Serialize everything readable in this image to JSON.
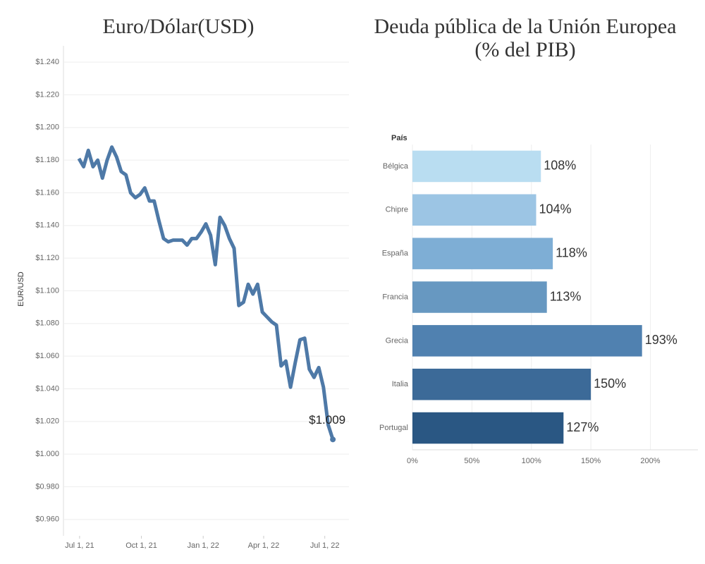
{
  "chart_data": [
    {
      "type": "line",
      "title": "Euro/Dólar(USD)",
      "y_label": "EUR/USD",
      "annotation": "$1.009",
      "color": "#4e79a7",
      "grid": true,
      "x": [
        "2021-06-30",
        "2021-07-07",
        "2021-07-14",
        "2021-07-21",
        "2021-07-28",
        "2021-08-04",
        "2021-08-11",
        "2021-08-18",
        "2021-08-25",
        "2021-09-01",
        "2021-09-08",
        "2021-09-15",
        "2021-09-22",
        "2021-09-29",
        "2021-10-06",
        "2021-10-13",
        "2021-10-20",
        "2021-10-27",
        "2021-11-03",
        "2021-11-10",
        "2021-11-17",
        "2021-11-24",
        "2021-12-01",
        "2021-12-08",
        "2021-12-15",
        "2021-12-22",
        "2021-12-29",
        "2022-01-05",
        "2022-01-12",
        "2022-01-19",
        "2022-01-26",
        "2022-02-02",
        "2022-02-09",
        "2022-02-16",
        "2022-02-23",
        "2022-03-02",
        "2022-03-09",
        "2022-03-16",
        "2022-03-23",
        "2022-03-30",
        "2022-04-06",
        "2022-04-13",
        "2022-04-20",
        "2022-04-27",
        "2022-05-04",
        "2022-05-11",
        "2022-05-18",
        "2022-05-25",
        "2022-06-01",
        "2022-06-08",
        "2022-06-15",
        "2022-06-22",
        "2022-06-29",
        "2022-07-06",
        "2022-07-13"
      ],
      "values": [
        1.181,
        1.176,
        1.186,
        1.176,
        1.18,
        1.169,
        1.18,
        1.188,
        1.182,
        1.173,
        1.171,
        1.16,
        1.157,
        1.159,
        1.163,
        1.155,
        1.155,
        1.143,
        1.132,
        1.13,
        1.131,
        1.131,
        1.131,
        1.128,
        1.132,
        1.132,
        1.136,
        1.141,
        1.134,
        1.116,
        1.145,
        1.14,
        1.132,
        1.126,
        1.091,
        1.093,
        1.104,
        1.098,
        1.104,
        1.087,
        1.084,
        1.081,
        1.079,
        1.054,
        1.057,
        1.041,
        1.056,
        1.07,
        1.071,
        1.052,
        1.047,
        1.053,
        1.041,
        1.018,
        1.009
      ],
      "xlim": [
        "2021-06-07",
        "2022-08-06"
      ],
      "xticks": [
        {
          "value": "2021-07-01",
          "label": "Jul 1, 21"
        },
        {
          "value": "2021-10-01",
          "label": "Oct 1, 21"
        },
        {
          "value": "2022-01-01",
          "label": "Jan 1, 22"
        },
        {
          "value": "2022-04-01",
          "label": "Apr 1, 22"
        },
        {
          "value": "2022-07-01",
          "label": "Jul 1, 22"
        }
      ],
      "ylim": [
        0.95,
        1.25
      ],
      "yticks": [
        {
          "value": 0.96,
          "label": "$0.960"
        },
        {
          "value": 0.98,
          "label": "$0.980"
        },
        {
          "value": 1.0,
          "label": "$1.000"
        },
        {
          "value": 1.02,
          "label": "$1.020"
        },
        {
          "value": 1.04,
          "label": "$1.040"
        },
        {
          "value": 1.06,
          "label": "$1.060"
        },
        {
          "value": 1.08,
          "label": "$1.080"
        },
        {
          "value": 1.1,
          "label": "$1.100"
        },
        {
          "value": 1.12,
          "label": "$1.120"
        },
        {
          "value": 1.14,
          "label": "$1.140"
        },
        {
          "value": 1.16,
          "label": "$1.160"
        },
        {
          "value": 1.18,
          "label": "$1.180"
        },
        {
          "value": 1.2,
          "label": "$1.200"
        },
        {
          "value": 1.22,
          "label": "$1.220"
        },
        {
          "value": 1.24,
          "label": "$1.240"
        }
      ]
    },
    {
      "type": "hbar",
      "title": [
        "Deuda pública de la Unión Europea",
        "(% del PIB)"
      ],
      "category_label": "País",
      "grid": true,
      "categories": [
        "Bélgica",
        "Chipre",
        "España",
        "Francia",
        "Grecia",
        "Italia",
        "Portugal"
      ],
      "values": [
        108,
        104,
        118,
        113,
        193,
        150,
        127
      ],
      "value_labels": [
        "108%",
        "104%",
        "118%",
        "113%",
        "193%",
        "150%",
        "127%"
      ],
      "colors": [
        "#b9ddf1",
        "#9cc5e4",
        "#7eaed5",
        "#6798c1",
        "#5081b0",
        "#3c6a98",
        "#2a5783"
      ],
      "xlim": [
        0,
        240
      ],
      "xticks": [
        {
          "value": 0,
          "label": "0%"
        },
        {
          "value": 50,
          "label": "50%"
        },
        {
          "value": 100,
          "label": "100%"
        },
        {
          "value": 150,
          "label": "150%"
        },
        {
          "value": 200,
          "label": "200%"
        }
      ]
    }
  ]
}
